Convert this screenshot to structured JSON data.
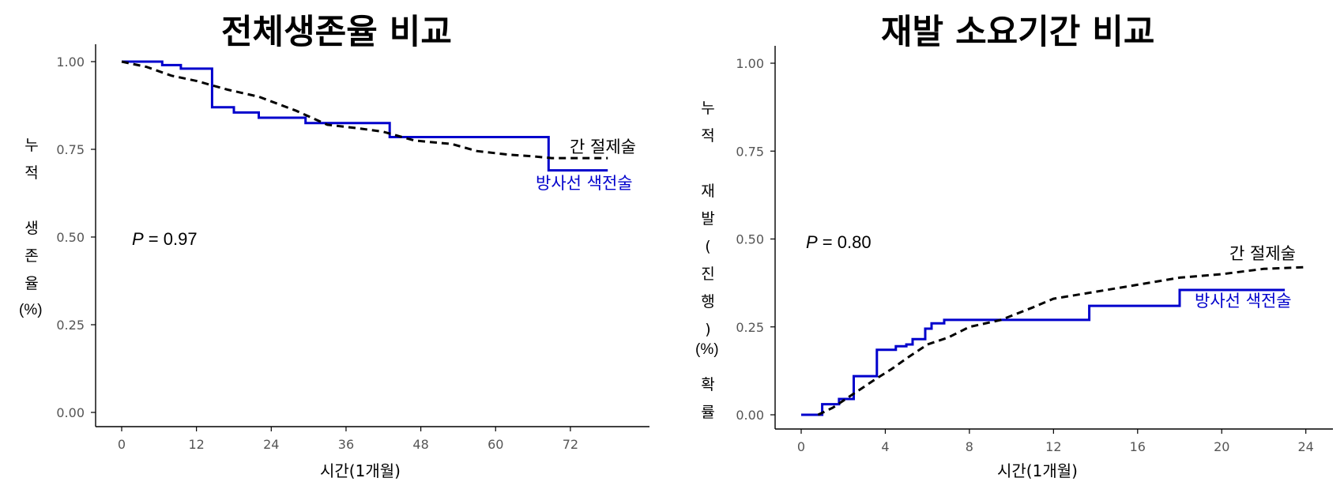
{
  "charts": {
    "left": {
      "title": "전체생존율 비교",
      "y_label_chars": [
        "누",
        "적",
        "",
        "생",
        "존",
        "율"
      ],
      "y_label_unit": "(%)",
      "x_label": "시간(1개월)",
      "p_prefix": "P",
      "p_rest": " = 0.97",
      "legend": {
        "dashed": "간 절제술",
        "solid": "방사선 색전술"
      }
    },
    "right": {
      "title": "재발 소요기간 비교",
      "y_label_chars": [
        "누",
        "적",
        "",
        "재",
        "발",
        "(",
        "진",
        "행",
        ")",
        "",
        "확",
        "률"
      ],
      "y_label_unit": "(%)",
      "x_label": "시간(1개월)",
      "p_prefix": "P",
      "p_rest": " = 0.80",
      "legend": {
        "dashed": "간 절제술",
        "solid": "방사선 색전술"
      }
    }
  },
  "colors": {
    "solid_series": "#0000cc",
    "dashed_series": "#000000",
    "axis": "#000000",
    "tick_text": "#555555"
  },
  "chart_data": [
    {
      "type": "line",
      "title": "전체생존율 비교",
      "xlabel": "시간(1개월)",
      "ylabel": "누적 생존율 (%)",
      "xlim": [
        0,
        80
      ],
      "ylim": [
        0,
        1.0
      ],
      "x_ticks": [
        0,
        12,
        24,
        36,
        48,
        60,
        72
      ],
      "y_ticks": [
        0.0,
        0.25,
        0.5,
        0.75,
        1.0
      ],
      "y_tick_labels": [
        "0.00",
        "0.25",
        "0.50",
        "0.75",
        "1.00"
      ],
      "annotation": "P = 0.97",
      "series": [
        {
          "name": "방사선 색전술",
          "style": "solid",
          "color": "#0000cc",
          "points": [
            [
              0,
              1.0
            ],
            [
              6.5,
              1.0
            ],
            [
              6.5,
              0.99
            ],
            [
              9.5,
              0.99
            ],
            [
              9.5,
              0.98
            ],
            [
              14.5,
              0.98
            ],
            [
              14.5,
              0.87
            ],
            [
              18,
              0.87
            ],
            [
              18,
              0.855
            ],
            [
              22,
              0.855
            ],
            [
              22,
              0.84
            ],
            [
              29.5,
              0.84
            ],
            [
              29.5,
              0.825
            ],
            [
              43,
              0.825
            ],
            [
              43,
              0.785
            ],
            [
              68.5,
              0.785
            ],
            [
              68.5,
              0.69
            ],
            [
              78,
              0.69
            ]
          ]
        },
        {
          "name": "간 절제술",
          "style": "dashed",
          "color": "#000000",
          "points": [
            [
              0,
              1.0
            ],
            [
              4,
              0.985
            ],
            [
              8,
              0.96
            ],
            [
              12,
              0.945
            ],
            [
              17,
              0.92
            ],
            [
              22,
              0.9
            ],
            [
              28,
              0.86
            ],
            [
              33,
              0.82
            ],
            [
              38,
              0.81
            ],
            [
              42,
              0.8
            ],
            [
              47,
              0.775
            ],
            [
              53,
              0.765
            ],
            [
              57,
              0.745
            ],
            [
              62,
              0.735
            ],
            [
              66,
              0.73
            ],
            [
              69,
              0.725
            ],
            [
              78,
              0.725
            ]
          ]
        }
      ]
    },
    {
      "type": "line",
      "title": "재발 소요기간 비교",
      "xlabel": "시간(1개월)",
      "ylabel": "누적 재발(진행) 확률 (%)",
      "xlim": [
        0,
        24.5
      ],
      "ylim": [
        0,
        1.0
      ],
      "x_ticks": [
        0,
        4,
        8,
        12,
        16,
        20,
        24
      ],
      "y_ticks": [
        0.0,
        0.25,
        0.5,
        0.75,
        1.0
      ],
      "y_tick_labels": [
        "0.00",
        "0.25",
        "0.50",
        "0.75",
        "1.00"
      ],
      "annotation": "P = 0.80",
      "series": [
        {
          "name": "방사선 색전술",
          "style": "solid",
          "color": "#0000cc",
          "points": [
            [
              0,
              0.0
            ],
            [
              1,
              0.0
            ],
            [
              1,
              0.03
            ],
            [
              1.8,
              0.03
            ],
            [
              1.8,
              0.045
            ],
            [
              2.5,
              0.045
            ],
            [
              2.5,
              0.11
            ],
            [
              3.6,
              0.11
            ],
            [
              3.6,
              0.185
            ],
            [
              4.5,
              0.185
            ],
            [
              4.5,
              0.195
            ],
            [
              5,
              0.195
            ],
            [
              5,
              0.2
            ],
            [
              5.3,
              0.2
            ],
            [
              5.3,
              0.215
            ],
            [
              5.9,
              0.215
            ],
            [
              5.9,
              0.245
            ],
            [
              6.2,
              0.245
            ],
            [
              6.2,
              0.26
            ],
            [
              6.8,
              0.26
            ],
            [
              6.8,
              0.27
            ],
            [
              13.7,
              0.27
            ],
            [
              13.7,
              0.31
            ],
            [
              18,
              0.31
            ],
            [
              18,
              0.355
            ],
            [
              23,
              0.355
            ]
          ]
        },
        {
          "name": "간 절제술",
          "style": "dashed",
          "color": "#000000",
          "points": [
            [
              0.8,
              0.0
            ],
            [
              1.5,
              0.02
            ],
            [
              2.5,
              0.06
            ],
            [
              3.5,
              0.1
            ],
            [
              4.3,
              0.13
            ],
            [
              5,
              0.16
            ],
            [
              6,
              0.2
            ],
            [
              7,
              0.22
            ],
            [
              8,
              0.25
            ],
            [
              9.5,
              0.27
            ],
            [
              11,
              0.305
            ],
            [
              12,
              0.33
            ],
            [
              14,
              0.35
            ],
            [
              16,
              0.37
            ],
            [
              18,
              0.39
            ],
            [
              20,
              0.4
            ],
            [
              22,
              0.415
            ],
            [
              24,
              0.42
            ]
          ]
        }
      ]
    }
  ]
}
